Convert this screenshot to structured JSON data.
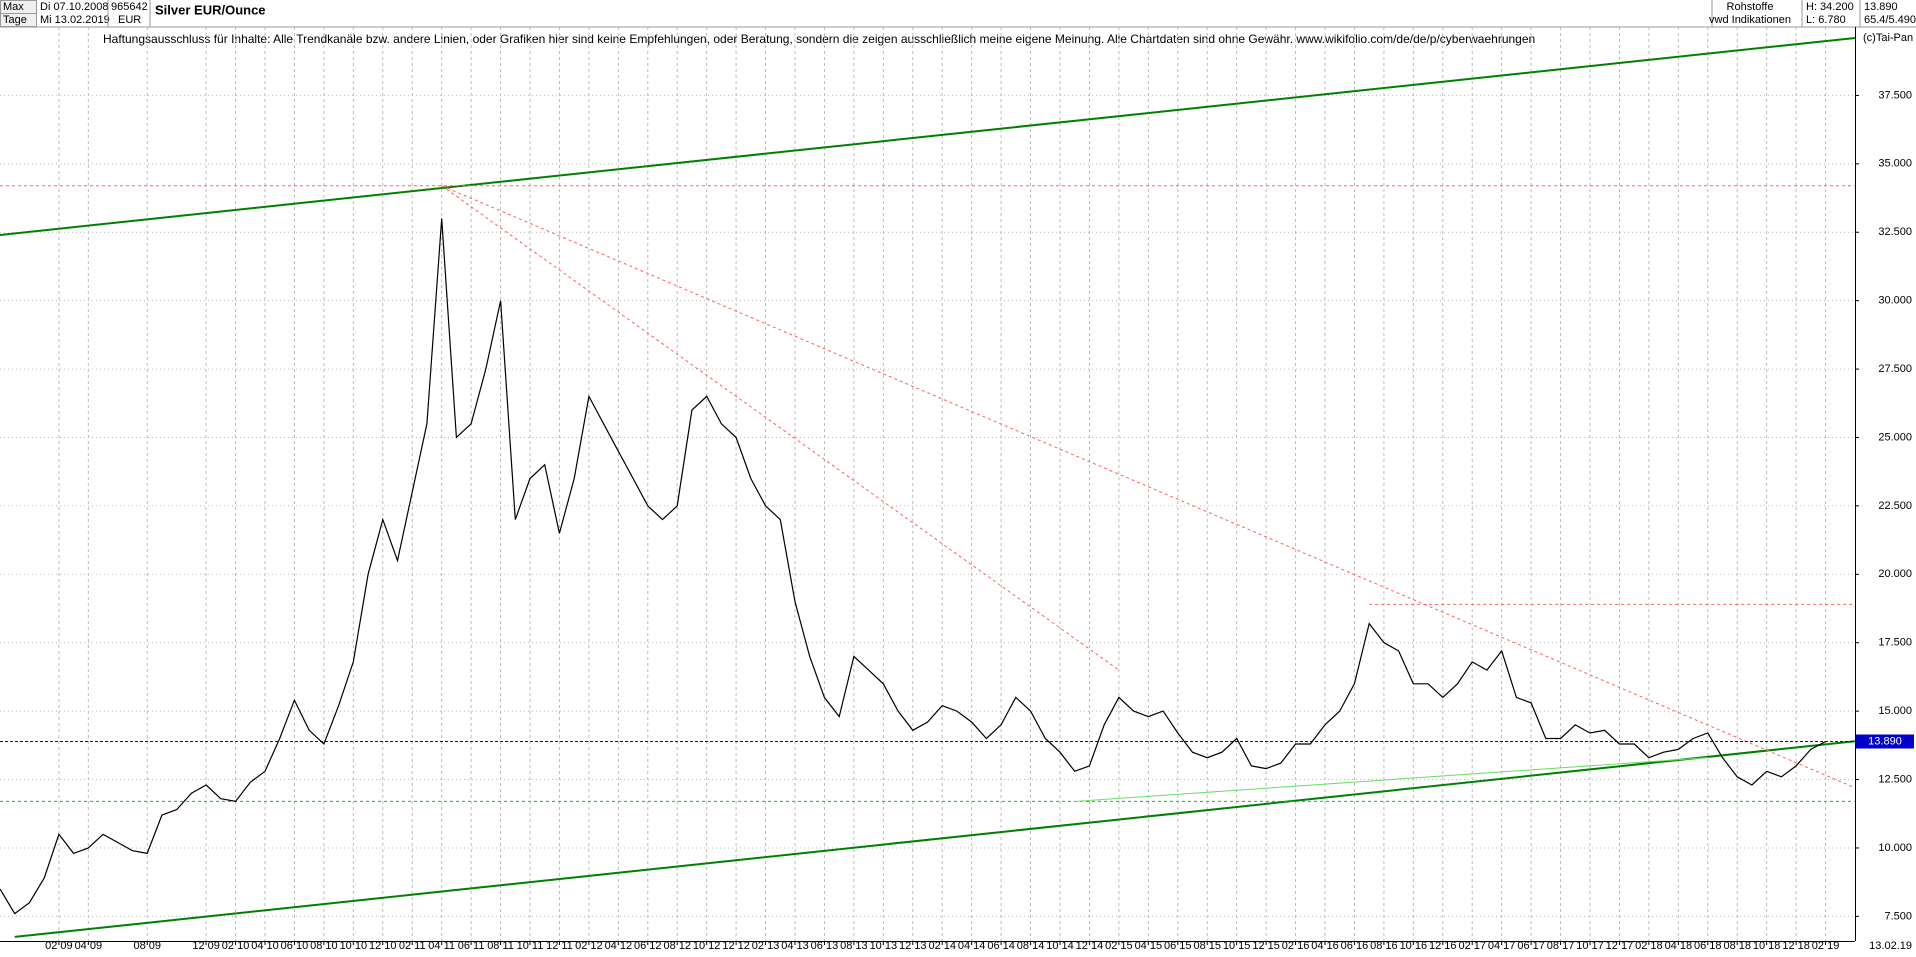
{
  "header": {
    "range": "Max",
    "interval": "Tage",
    "start_date": "Di 07.10.2008",
    "end_date": "Mi 13.02.2019",
    "wkn": "965642",
    "currency": "EUR",
    "instrument": "Silver EUR/Ounce",
    "group": "Rohstoffe",
    "source": "vwd Indikationen",
    "high": "H: 34.200",
    "low": "L: 6.780",
    "last": "13.890",
    "extra": "65.4/5.490",
    "copyright": "(c)Tai-Pan",
    "disclaimer": "Haftungsausschluss für Inhalte: Alle Trendkanäle bzw. andere Linien, oder Grafiken hier sind keine Empfehlungen, oder Beratung, sondern die zeigen ausschließlich meine eigene Meinung. Alle Chartdaten sind ohne Gewähr.  www.wikifolio.com/de/de/p/cyberwaehrungen",
    "axis_end": "13.02.19"
  },
  "chart_data": {
    "type": "line",
    "color": "#000000",
    "grid": true,
    "xlim": [
      "2008-10",
      "2019-04"
    ],
    "ylim": [
      6.6,
      40
    ],
    "yticks": [
      {
        "value": 7.5,
        "label": "7.500"
      },
      {
        "value": 10,
        "label": "10.000"
      },
      {
        "value": 12.5,
        "label": "12.500"
      },
      {
        "value": 15,
        "label": "15.000"
      },
      {
        "value": 17.5,
        "label": "17.500"
      },
      {
        "value": 20,
        "label": "20.000"
      },
      {
        "value": 22.5,
        "label": "22.500"
      },
      {
        "value": 25,
        "label": "25.000"
      },
      {
        "value": 27.5,
        "label": "27.500"
      },
      {
        "value": 30,
        "label": "30.000"
      },
      {
        "value": 32.5,
        "label": "32.500"
      },
      {
        "value": 35,
        "label": "35.000"
      },
      {
        "value": 37.5,
        "label": "37.500"
      }
    ],
    "xticks": [
      {
        "value": "2009-02",
        "label": "02 09"
      },
      {
        "value": "2009-04",
        "label": "04 09"
      },
      {
        "value": "2009-08",
        "label": "08 09"
      },
      {
        "value": "2009-12",
        "label": "12 09"
      },
      {
        "value": "2010-02",
        "label": "02 10"
      },
      {
        "value": "2010-04",
        "label": "04 10"
      },
      {
        "value": "2010-06",
        "label": "06 10"
      },
      {
        "value": "2010-08",
        "label": "08 10"
      },
      {
        "value": "2010-10",
        "label": "10 10"
      },
      {
        "value": "2010-12",
        "label": "12 10"
      },
      {
        "value": "2011-02",
        "label": "02 11"
      },
      {
        "value": "2011-04",
        "label": "04 11"
      },
      {
        "value": "2011-06",
        "label": "06 11"
      },
      {
        "value": "2011-08",
        "label": "08 11"
      },
      {
        "value": "2011-10",
        "label": "10 11"
      },
      {
        "value": "2011-12",
        "label": "12 11"
      },
      {
        "value": "2012-02",
        "label": "02 12"
      },
      {
        "value": "2012-04",
        "label": "04 12"
      },
      {
        "value": "2012-06",
        "label": "06 12"
      },
      {
        "value": "2012-08",
        "label": "08 12"
      },
      {
        "value": "2012-10",
        "label": "10 12"
      },
      {
        "value": "2012-12",
        "label": "12 12"
      },
      {
        "value": "2013-02",
        "label": "02 13"
      },
      {
        "value": "2013-04",
        "label": "04 13"
      },
      {
        "value": "2013-06",
        "label": "06 13"
      },
      {
        "value": "2013-08",
        "label": "08 13"
      },
      {
        "value": "2013-10",
        "label": "10 13"
      },
      {
        "value": "2013-12",
        "label": "12 13"
      },
      {
        "value": "2014-02",
        "label": "02 14"
      },
      {
        "value": "2014-04",
        "label": "04 14"
      },
      {
        "value": "2014-06",
        "label": "06 14"
      },
      {
        "value": "2014-08",
        "label": "08 14"
      },
      {
        "value": "2014-10",
        "label": "10 14"
      },
      {
        "value": "2014-12",
        "label": "12 14"
      },
      {
        "value": "2015-02",
        "label": "02 15"
      },
      {
        "value": "2015-04",
        "label": "04 15"
      },
      {
        "value": "2015-06",
        "label": "06 15"
      },
      {
        "value": "2015-08",
        "label": "08 15"
      },
      {
        "value": "2015-10",
        "label": "10 15"
      },
      {
        "value": "2015-12",
        "label": "12 15"
      },
      {
        "value": "2016-02",
        "label": "02 16"
      },
      {
        "value": "2016-04",
        "label": "04 16"
      },
      {
        "value": "2016-06",
        "label": "06 16"
      },
      {
        "value": "2016-08",
        "label": "08 16"
      },
      {
        "value": "2016-10",
        "label": "10 16"
      },
      {
        "value": "2016-12",
        "label": "12 16"
      },
      {
        "value": "2017-02",
        "label": "02 17"
      },
      {
        "value": "2017-04",
        "label": "04 17"
      },
      {
        "value": "2017-06",
        "label": "06 17"
      },
      {
        "value": "2017-08",
        "label": "08 17"
      },
      {
        "value": "2017-10",
        "label": "10 17"
      },
      {
        "value": "2017-12",
        "label": "12 17"
      },
      {
        "value": "2018-02",
        "label": "02 18"
      },
      {
        "value": "2018-04",
        "label": "04 18"
      },
      {
        "value": "2018-06",
        "label": "06 18"
      },
      {
        "value": "2018-08",
        "label": "08 18"
      },
      {
        "value": "2018-10",
        "label": "10 18"
      },
      {
        "value": "2018-12",
        "label": "12 18"
      },
      {
        "value": "2019-02",
        "label": "02 19"
      }
    ],
    "x": [
      "2008-10",
      "2008-11",
      "2008-12",
      "2009-01",
      "2009-02",
      "2009-03",
      "2009-04",
      "2009-05",
      "2009-06",
      "2009-07",
      "2009-08",
      "2009-09",
      "2009-10",
      "2009-11",
      "2009-12",
      "2010-01",
      "2010-02",
      "2010-03",
      "2010-04",
      "2010-05",
      "2010-06",
      "2010-07",
      "2010-08",
      "2010-09",
      "2010-10",
      "2010-11",
      "2010-12",
      "2011-01",
      "2011-02",
      "2011-03",
      "2011-04",
      "2011-05",
      "2011-06",
      "2011-07",
      "2011-08",
      "2011-09",
      "2011-10",
      "2011-11",
      "2011-12",
      "2012-01",
      "2012-02",
      "2012-03",
      "2012-04",
      "2012-05",
      "2012-06",
      "2012-07",
      "2012-08",
      "2012-09",
      "2012-10",
      "2012-11",
      "2012-12",
      "2013-01",
      "2013-02",
      "2013-03",
      "2013-04",
      "2013-05",
      "2013-06",
      "2013-07",
      "2013-08",
      "2013-09",
      "2013-10",
      "2013-11",
      "2013-12",
      "2014-01",
      "2014-02",
      "2014-03",
      "2014-04",
      "2014-05",
      "2014-06",
      "2014-07",
      "2014-08",
      "2014-09",
      "2014-10",
      "2014-11",
      "2014-12",
      "2015-01",
      "2015-02",
      "2015-03",
      "2015-04",
      "2015-05",
      "2015-06",
      "2015-07",
      "2015-08",
      "2015-09",
      "2015-10",
      "2015-11",
      "2015-12",
      "2016-01",
      "2016-02",
      "2016-03",
      "2016-04",
      "2016-05",
      "2016-06",
      "2016-07",
      "2016-08",
      "2016-09",
      "2016-10",
      "2016-11",
      "2016-12",
      "2017-01",
      "2017-02",
      "2017-03",
      "2017-04",
      "2017-05",
      "2017-06",
      "2017-07",
      "2017-08",
      "2017-09",
      "2017-10",
      "2017-11",
      "2017-12",
      "2018-01",
      "2018-02",
      "2018-03",
      "2018-04",
      "2018-05",
      "2018-06",
      "2018-07",
      "2018-08",
      "2018-09",
      "2018-10",
      "2018-11",
      "2018-12",
      "2019-01",
      "2019-02"
    ],
    "values": [
      8.5,
      7.6,
      8.0,
      8.9,
      10.5,
      9.8,
      10.0,
      10.5,
      10.2,
      9.9,
      9.8,
      11.2,
      11.4,
      12.0,
      12.3,
      11.8,
      11.7,
      12.4,
      12.8,
      14.0,
      15.4,
      14.3,
      13.8,
      15.2,
      16.8,
      20.0,
      22.0,
      20.5,
      23.0,
      25.5,
      33.0,
      25.0,
      25.5,
      27.5,
      30.0,
      22.0,
      23.5,
      24.0,
      21.5,
      23.5,
      26.5,
      25.5,
      24.5,
      23.5,
      22.5,
      22.0,
      22.5,
      26.0,
      26.5,
      25.5,
      25.0,
      23.5,
      22.5,
      22.0,
      19.0,
      17.0,
      15.5,
      14.8,
      17.0,
      16.5,
      16.0,
      15.0,
      14.3,
      14.6,
      15.2,
      15.0,
      14.6,
      14.0,
      14.5,
      15.5,
      15.0,
      14.0,
      13.5,
      12.8,
      13.0,
      14.5,
      15.5,
      15.0,
      14.8,
      15.0,
      14.2,
      13.5,
      13.3,
      13.5,
      14.0,
      13.0,
      12.9,
      13.1,
      13.8,
      13.8,
      14.5,
      15.0,
      16.0,
      18.2,
      17.5,
      17.2,
      16.0,
      16.0,
      15.5,
      16.0,
      16.8,
      16.5,
      17.2,
      15.5,
      15.3,
      14.0,
      14.0,
      14.5,
      14.2,
      14.3,
      13.8,
      13.8,
      13.3,
      13.5,
      13.6,
      14.0,
      14.2,
      13.3,
      12.6,
      12.3,
      12.8,
      12.6,
      13.0,
      13.6,
      13.89
    ],
    "last_price": {
      "value": 13.89,
      "label": "13.890",
      "color": "#0000cc"
    },
    "trendlines": [
      {
        "color": "#008000",
        "width": 2,
        "dash": false,
        "x": [
          "2008-10",
          "2019-04"
        ],
        "y": [
          32.4,
          39.6
        ]
      },
      {
        "color": "#008000",
        "width": 2,
        "dash": false,
        "x": [
          "2008-11",
          "2019-04"
        ],
        "y": [
          6.75,
          13.9
        ]
      },
      {
        "color": "#ff6060",
        "width": 1,
        "dash": true,
        "x": [
          "2011-04",
          "2019-04"
        ],
        "y": [
          34.2,
          12.2
        ]
      },
      {
        "color": "#ff6060",
        "width": 1,
        "dash": true,
        "x": [
          "2011-04",
          "2015-02"
        ],
        "y": [
          34.2,
          16.5
        ]
      },
      {
        "color": "#ff6060",
        "width": 1,
        "dash": true,
        "x": [
          "2008-10",
          "2019-04"
        ],
        "y": [
          34.2,
          34.2
        ]
      },
      {
        "color": "#ff6060",
        "width": 1,
        "dash": true,
        "x": [
          "2016-07",
          "2019-04"
        ],
        "y": [
          18.9,
          18.9
        ]
      },
      {
        "color": "#00cc00",
        "width": 1,
        "dash": true,
        "x": [
          "2008-10",
          "2019-04"
        ],
        "y": [
          11.7,
          11.7
        ]
      },
      {
        "color": "#66dd66",
        "width": 1,
        "dash": false,
        "x": [
          "2014-11",
          "2018-06"
        ],
        "y": [
          11.7,
          13.3
        ]
      }
    ]
  }
}
